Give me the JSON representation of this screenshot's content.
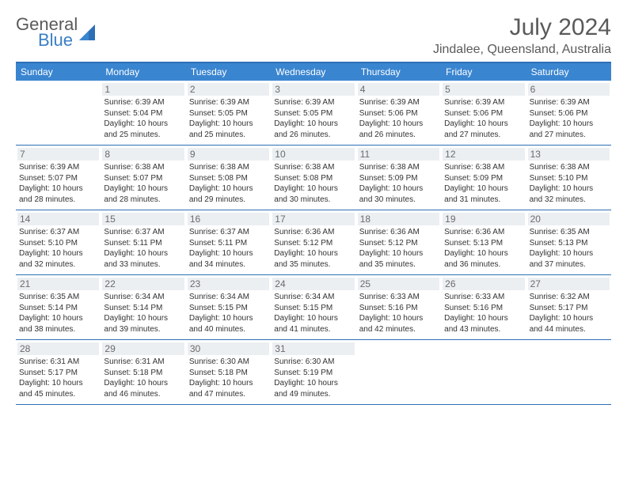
{
  "brand": {
    "line1": "General",
    "line2": "Blue"
  },
  "title": "July 2024",
  "location": "Jindalee, Queensland, Australia",
  "colors": {
    "header_bg": "#3a85d0",
    "border": "#2d6fb5",
    "daynum_bg": "#eceff2",
    "text": "#333333",
    "muted": "#5a5a5a",
    "brand_blue": "#3a7fc4"
  },
  "weekdays": [
    "Sunday",
    "Monday",
    "Tuesday",
    "Wednesday",
    "Thursday",
    "Friday",
    "Saturday"
  ],
  "layout": {
    "cols": 7,
    "rows": 5,
    "start_offset": 1,
    "days_in_month": 31
  },
  "days": {
    "1": {
      "sunrise": "6:39 AM",
      "sunset": "5:04 PM",
      "daylight": "10 hours and 25 minutes."
    },
    "2": {
      "sunrise": "6:39 AM",
      "sunset": "5:05 PM",
      "daylight": "10 hours and 25 minutes."
    },
    "3": {
      "sunrise": "6:39 AM",
      "sunset": "5:05 PM",
      "daylight": "10 hours and 26 minutes."
    },
    "4": {
      "sunrise": "6:39 AM",
      "sunset": "5:06 PM",
      "daylight": "10 hours and 26 minutes."
    },
    "5": {
      "sunrise": "6:39 AM",
      "sunset": "5:06 PM",
      "daylight": "10 hours and 27 minutes."
    },
    "6": {
      "sunrise": "6:39 AM",
      "sunset": "5:06 PM",
      "daylight": "10 hours and 27 minutes."
    },
    "7": {
      "sunrise": "6:39 AM",
      "sunset": "5:07 PM",
      "daylight": "10 hours and 28 minutes."
    },
    "8": {
      "sunrise": "6:38 AM",
      "sunset": "5:07 PM",
      "daylight": "10 hours and 28 minutes."
    },
    "9": {
      "sunrise": "6:38 AM",
      "sunset": "5:08 PM",
      "daylight": "10 hours and 29 minutes."
    },
    "10": {
      "sunrise": "6:38 AM",
      "sunset": "5:08 PM",
      "daylight": "10 hours and 30 minutes."
    },
    "11": {
      "sunrise": "6:38 AM",
      "sunset": "5:09 PM",
      "daylight": "10 hours and 30 minutes."
    },
    "12": {
      "sunrise": "6:38 AM",
      "sunset": "5:09 PM",
      "daylight": "10 hours and 31 minutes."
    },
    "13": {
      "sunrise": "6:38 AM",
      "sunset": "5:10 PM",
      "daylight": "10 hours and 32 minutes."
    },
    "14": {
      "sunrise": "6:37 AM",
      "sunset": "5:10 PM",
      "daylight": "10 hours and 32 minutes."
    },
    "15": {
      "sunrise": "6:37 AM",
      "sunset": "5:11 PM",
      "daylight": "10 hours and 33 minutes."
    },
    "16": {
      "sunrise": "6:37 AM",
      "sunset": "5:11 PM",
      "daylight": "10 hours and 34 minutes."
    },
    "17": {
      "sunrise": "6:36 AM",
      "sunset": "5:12 PM",
      "daylight": "10 hours and 35 minutes."
    },
    "18": {
      "sunrise": "6:36 AM",
      "sunset": "5:12 PM",
      "daylight": "10 hours and 35 minutes."
    },
    "19": {
      "sunrise": "6:36 AM",
      "sunset": "5:13 PM",
      "daylight": "10 hours and 36 minutes."
    },
    "20": {
      "sunrise": "6:35 AM",
      "sunset": "5:13 PM",
      "daylight": "10 hours and 37 minutes."
    },
    "21": {
      "sunrise": "6:35 AM",
      "sunset": "5:14 PM",
      "daylight": "10 hours and 38 minutes."
    },
    "22": {
      "sunrise": "6:34 AM",
      "sunset": "5:14 PM",
      "daylight": "10 hours and 39 minutes."
    },
    "23": {
      "sunrise": "6:34 AM",
      "sunset": "5:15 PM",
      "daylight": "10 hours and 40 minutes."
    },
    "24": {
      "sunrise": "6:34 AM",
      "sunset": "5:15 PM",
      "daylight": "10 hours and 41 minutes."
    },
    "25": {
      "sunrise": "6:33 AM",
      "sunset": "5:16 PM",
      "daylight": "10 hours and 42 minutes."
    },
    "26": {
      "sunrise": "6:33 AM",
      "sunset": "5:16 PM",
      "daylight": "10 hours and 43 minutes."
    },
    "27": {
      "sunrise": "6:32 AM",
      "sunset": "5:17 PM",
      "daylight": "10 hours and 44 minutes."
    },
    "28": {
      "sunrise": "6:31 AM",
      "sunset": "5:17 PM",
      "daylight": "10 hours and 45 minutes."
    },
    "29": {
      "sunrise": "6:31 AM",
      "sunset": "5:18 PM",
      "daylight": "10 hours and 46 minutes."
    },
    "30": {
      "sunrise": "6:30 AM",
      "sunset": "5:18 PM",
      "daylight": "10 hours and 47 minutes."
    },
    "31": {
      "sunrise": "6:30 AM",
      "sunset": "5:19 PM",
      "daylight": "10 hours and 49 minutes."
    }
  },
  "labels": {
    "sunrise": "Sunrise:",
    "sunset": "Sunset:",
    "daylight": "Daylight:"
  }
}
